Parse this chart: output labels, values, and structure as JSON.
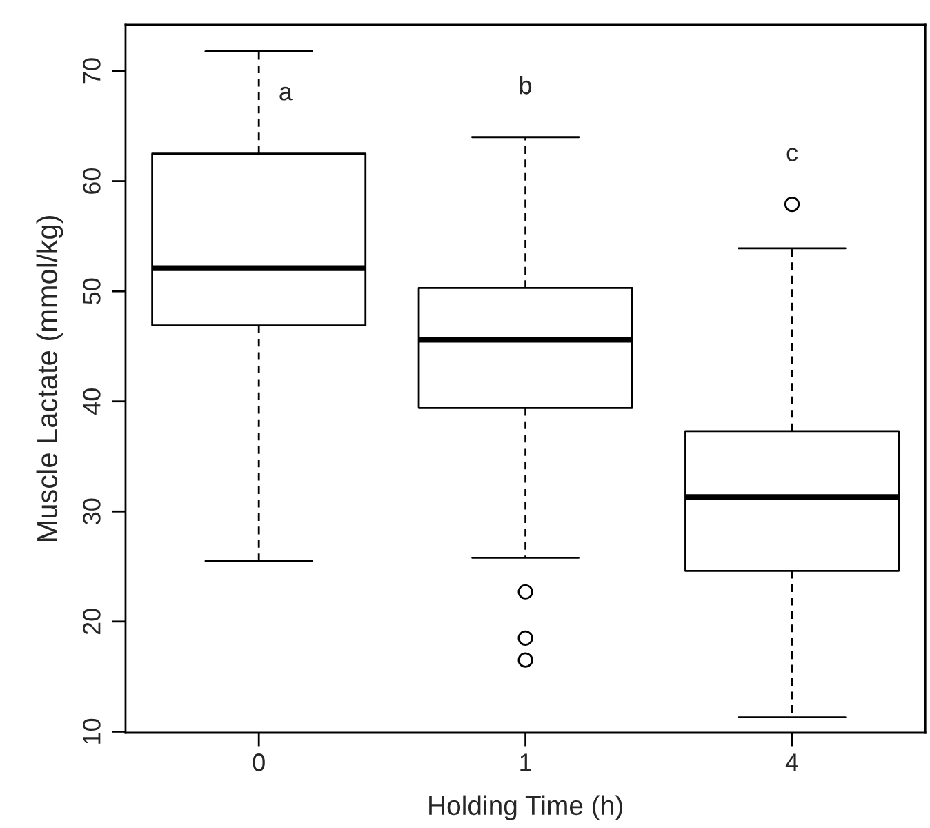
{
  "chart_data": {
    "type": "box",
    "xlabel": "Holding Time (h)",
    "ylabel": "Muscle Lactate (mmol/kg)",
    "categories": [
      "0",
      "1",
      "4"
    ],
    "boxes": [
      {
        "low": 25.5,
        "q1": 46.9,
        "median": 52.1,
        "q3": 62.5,
        "high": 71.8
      },
      {
        "low": 25.8,
        "q1": 39.4,
        "median": 45.6,
        "q3": 50.3,
        "high": 64.0,
        "outliers": [
          22.7,
          18.5,
          16.5
        ]
      },
      {
        "low": 11.3,
        "q1": 24.6,
        "median": 31.3,
        "q3": 37.3,
        "high": 53.9,
        "outliers": [
          57.9
        ]
      }
    ],
    "color": "#000000",
    "ylim": [
      9.9,
      74.2
    ],
    "yticks": [
      10,
      20,
      30,
      40,
      50,
      60,
      70
    ],
    "grid": false,
    "annotations": [
      "a",
      "b",
      "c"
    ]
  }
}
